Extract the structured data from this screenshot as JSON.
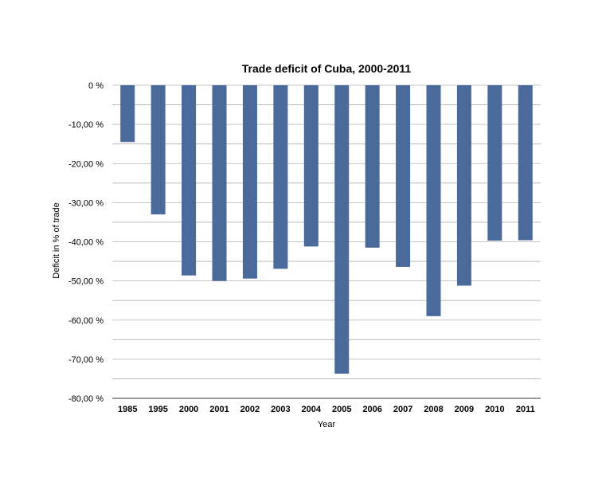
{
  "chart_data": {
    "type": "bar",
    "title": "Trade deficit of Cuba, 2000-2011",
    "xlabel": "Year",
    "ylabel": "Deficit in % of trade",
    "categories": [
      "1985",
      "1995",
      "2000",
      "2001",
      "2002",
      "2003",
      "2004",
      "2005",
      "2006",
      "2007",
      "2008",
      "2009",
      "2010",
      "2011"
    ],
    "values": [
      -14.5,
      -33.0,
      -48.6,
      -50.0,
      -49.4,
      -46.9,
      -41.2,
      -73.7,
      -41.5,
      -46.4,
      -59.0,
      -51.2,
      -39.7,
      -39.6
    ],
    "ylim": [
      -80,
      0
    ],
    "yticks": [
      0,
      -10,
      -20,
      -30,
      -40,
      -50,
      -60,
      -70,
      -80
    ],
    "ytick_labels": [
      "0 %",
      "-10,00 %",
      "-20,00 %",
      "-30,00 %",
      "-40,00 %",
      "-50,00 %",
      "-60,00 %",
      "-70,00 %",
      "-80,00 %"
    ],
    "grid": true,
    "bar_color": "#4a6a9b",
    "grid_color": "#b3b3b3"
  }
}
